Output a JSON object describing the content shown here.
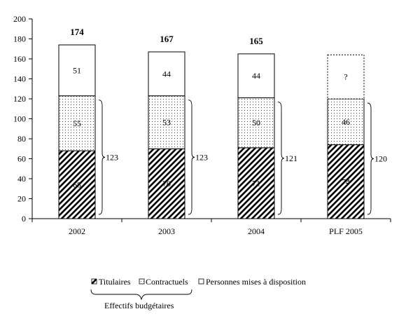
{
  "chart_data": {
    "type": "bar",
    "stacked": true,
    "categories": [
      "2002",
      "2003",
      "2004",
      "PLF 2005"
    ],
    "series": [
      {
        "name": "Titulaires",
        "values": [
          68,
          70,
          71,
          74
        ],
        "labels": [
          "68",
          "70",
          "71",
          "74"
        ],
        "pattern": "hatch"
      },
      {
        "name": "Contractuels",
        "values": [
          55,
          53,
          50,
          46
        ],
        "labels": [
          "55",
          "53",
          "50",
          "46"
        ],
        "pattern": "dots"
      },
      {
        "name": "Personnes mises à disposition",
        "values": [
          51,
          44,
          44,
          44
        ],
        "labels": [
          "51",
          "44",
          "44",
          "?"
        ],
        "pattern": "plain"
      }
    ],
    "totals": [
      "174",
      "167",
      "165",
      ""
    ],
    "budget_totals": [
      "123",
      "123",
      "121",
      "120"
    ],
    "ylim": [
      0,
      200
    ],
    "yticks": [
      0,
      20,
      40,
      60,
      80,
      100,
      120,
      140,
      160,
      180,
      200
    ],
    "legend_position": "bottom",
    "legend_group_label": "Effectifs budgétaires"
  }
}
